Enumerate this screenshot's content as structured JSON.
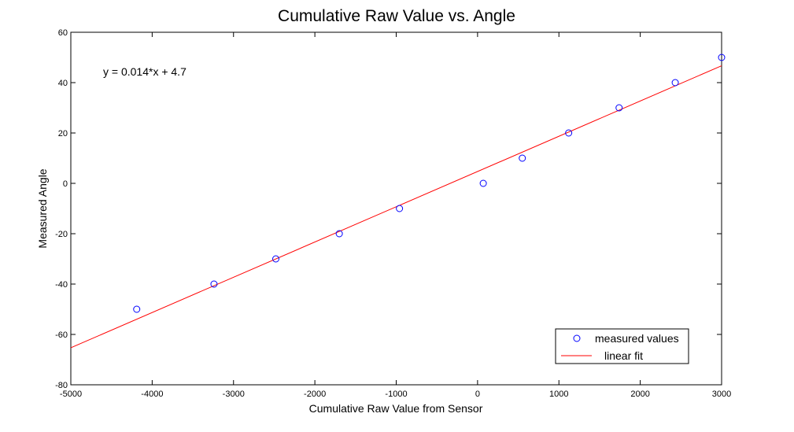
{
  "chart_data": {
    "type": "scatter",
    "title": "Cumulative Raw Value vs. Angle",
    "xlabel": "Cumulative Raw Value from Sensor",
    "ylabel": "Measured Angle",
    "xlim": [
      -5000,
      3000
    ],
    "ylim": [
      -80,
      60
    ],
    "xticks": [
      -5000,
      -4000,
      -3000,
      -2000,
      -1000,
      0,
      1000,
      2000,
      3000
    ],
    "yticks": [
      -80,
      -60,
      -40,
      -20,
      0,
      20,
      40,
      60
    ],
    "grid": false,
    "legend_placement": "bottom-right",
    "annotation": "y = 0.014*x + 4.7",
    "series": [
      {
        "name": "measured values",
        "kind": "scatter",
        "marker": "circle-open",
        "color": "#0000ff",
        "x": [
          -4190,
          -3240,
          -2480,
          -1700,
          -960,
          70,
          550,
          1120,
          1740,
          2430,
          3000
        ],
        "y": [
          -50,
          -40,
          -30,
          -20,
          -10,
          0,
          10,
          20,
          30,
          40,
          50
        ]
      },
      {
        "name": "linear fit",
        "kind": "line",
        "color": "#ff0000",
        "x": [
          -5000,
          3000
        ],
        "y": [
          -65.3,
          46.7
        ]
      }
    ]
  }
}
